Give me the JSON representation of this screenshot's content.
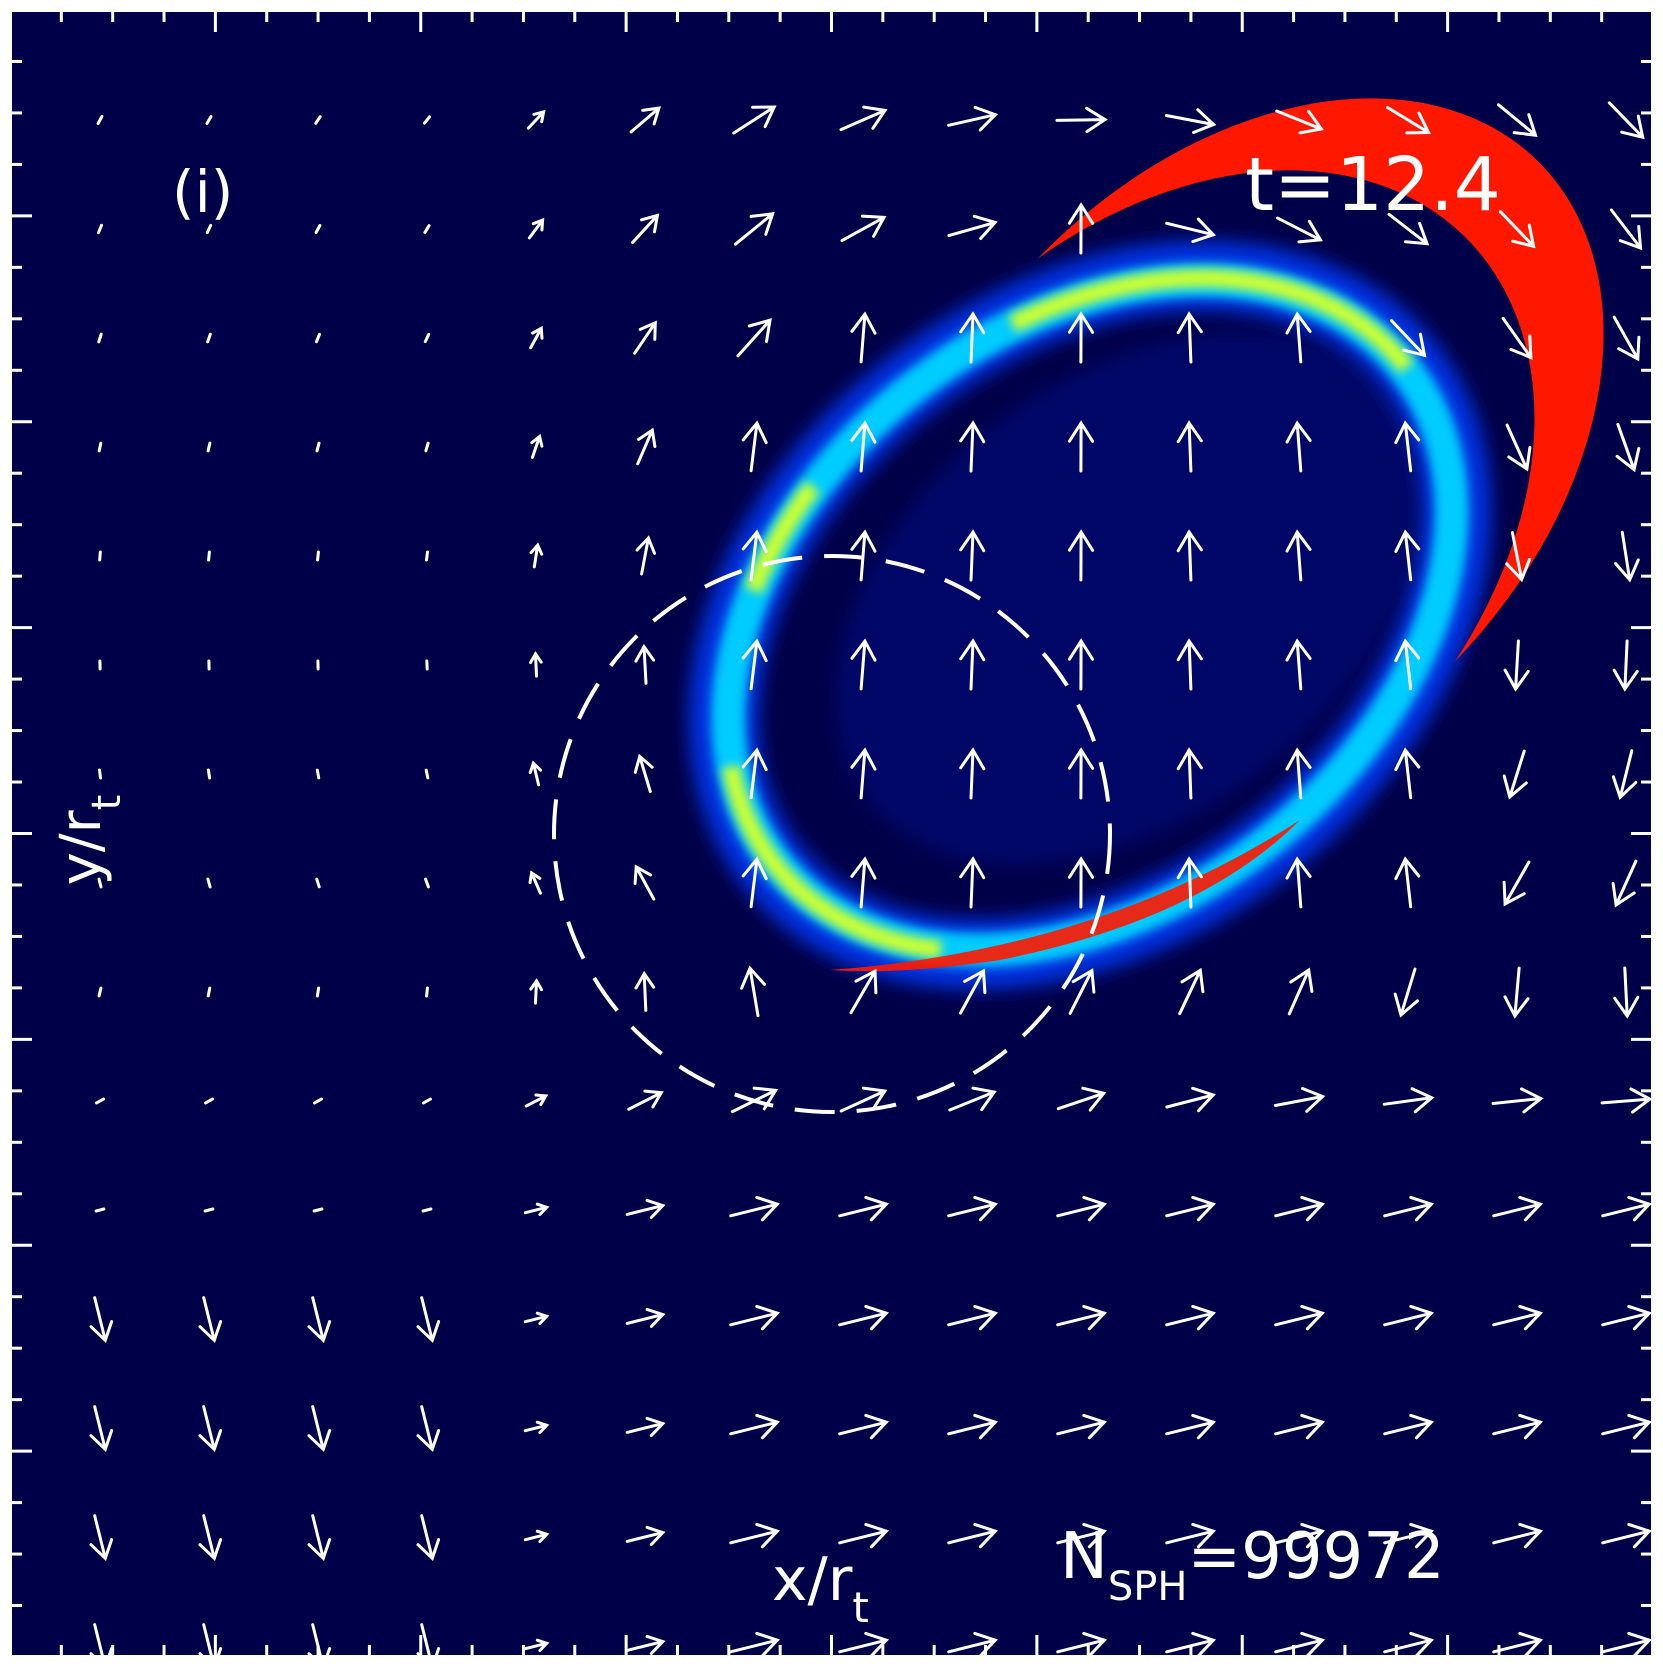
{
  "chart_data": {
    "type": "heatmap",
    "panel_label": "(i)",
    "time_label": "t=12.4",
    "xlabel": "x/r",
    "xlabel_sub": "t",
    "ylabel": "y/r",
    "ylabel_sub": "t",
    "particle_label": "N",
    "particle_label_sub": "SPH",
    "particle_label_value": "=99972",
    "colors": {
      "background": "#000048",
      "frame": "#ffffff",
      "colormap": [
        "#00006e",
        "#0022dd",
        "#00aaff",
        "#44ffcc",
        "#ffff33",
        "#ff1800"
      ]
    },
    "grid_on": false,
    "legend": "none",
    "overlays": [
      "dashed-circle",
      "velocity-arrows"
    ]
  }
}
